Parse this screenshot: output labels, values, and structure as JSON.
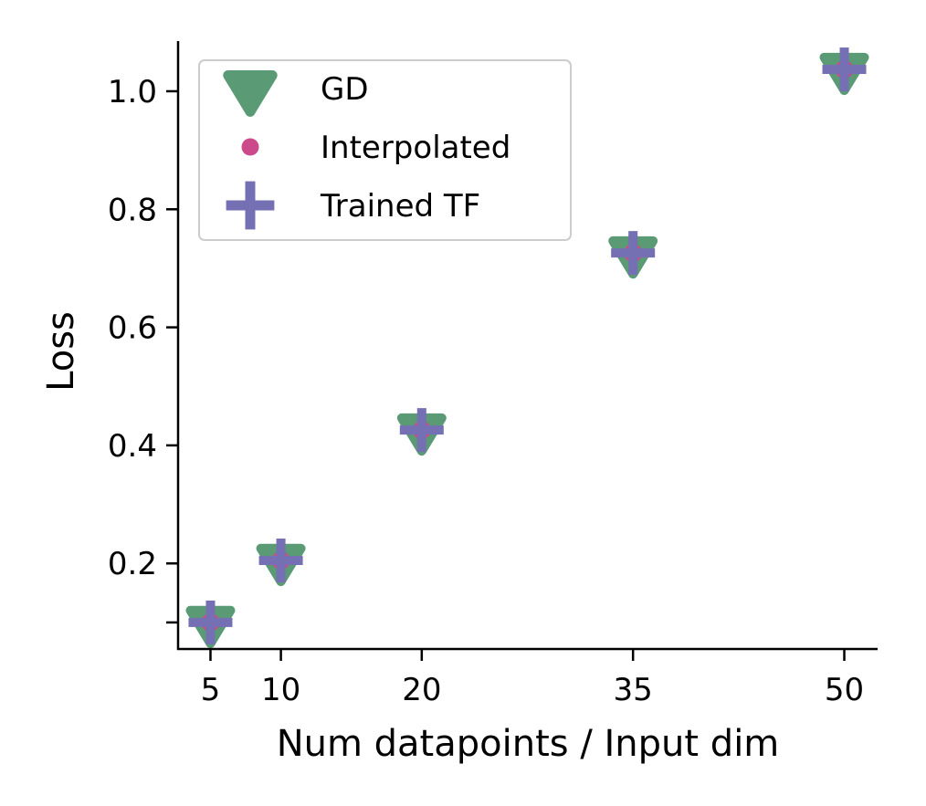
{
  "chart_data": {
    "type": "scatter",
    "title": "",
    "xlabel": "Num datapoints / Input dim",
    "ylabel": "Loss",
    "xlim": [
      2.7,
      52.3
    ],
    "ylim": [
      0.055,
      1.085
    ],
    "xticks": [
      5,
      10,
      20,
      35,
      50
    ],
    "xtick_labels": [
      "5",
      "10",
      "20",
      "35",
      "50"
    ],
    "yticks": [
      0.1,
      0.2,
      0.4,
      0.6,
      0.8,
      1.0
    ],
    "ytick_labels": [
      "",
      "0.2",
      "0.4",
      "0.6",
      "0.8",
      "1.0"
    ],
    "grid": false,
    "legend_position": "upper-left",
    "series": [
      {
        "name": "GD",
        "marker": "triangle-down",
        "color": "#5a9a74",
        "x": [
          5,
          10,
          20,
          35,
          50
        ],
        "y": [
          0.1,
          0.205,
          0.426,
          0.726,
          1.037
        ]
      },
      {
        "name": "Interpolated",
        "marker": "circle",
        "color": "#cc4a8b",
        "x": [
          5,
          10,
          20,
          35,
          50
        ],
        "y": [
          0.1,
          0.205,
          0.426,
          0.726,
          1.037
        ]
      },
      {
        "name": "Trained TF",
        "marker": "plus",
        "color": "#7570b3",
        "x": [
          5,
          10,
          20,
          35,
          50
        ],
        "y": [
          0.1,
          0.205,
          0.426,
          0.726,
          1.037
        ]
      }
    ]
  }
}
